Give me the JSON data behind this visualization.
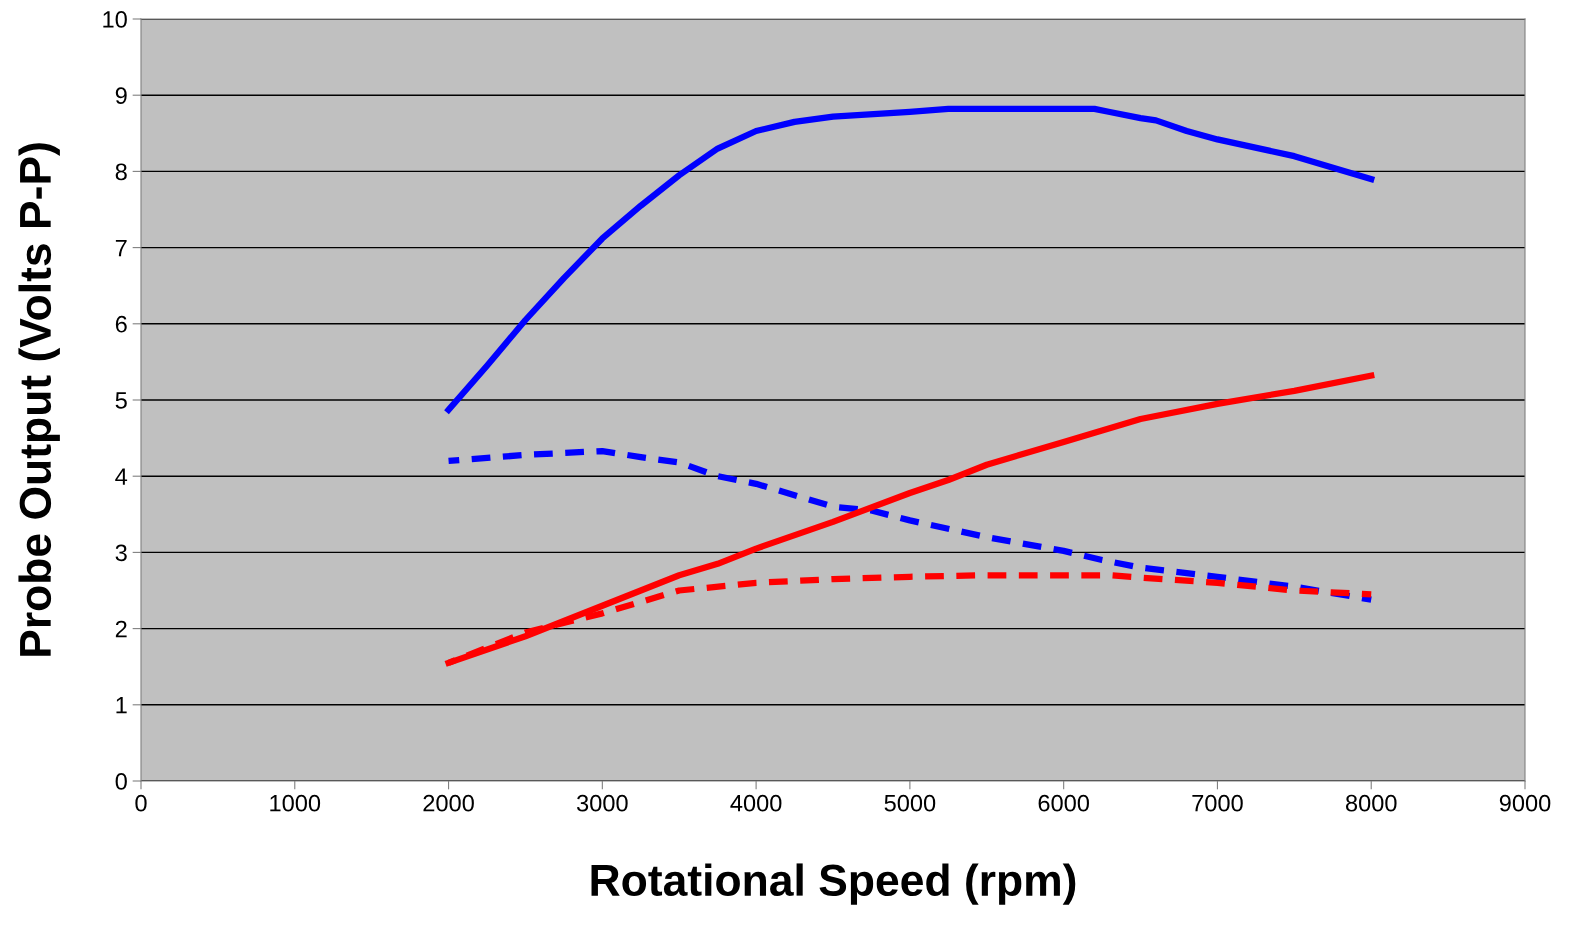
{
  "chart_data": {
    "type": "line",
    "xlabel": "Rotational Speed (rpm)",
    "ylabel": "Probe Output (Volts P-P)",
    "xlim": [
      0,
      9000
    ],
    "xticks": [
      0,
      1000,
      2000,
      3000,
      4000,
      5000,
      6000,
      7000,
      8000,
      9000
    ],
    "ylim": [
      0,
      10
    ],
    "yticks": [
      0,
      1,
      2,
      3,
      4,
      5,
      6,
      7,
      8,
      9,
      10
    ],
    "grid": "y",
    "marker": "none",
    "series": [
      {
        "color": "#0000ff",
        "line_style": "solid",
        "x": [
          2000,
          2250,
          2500,
          2750,
          3000,
          3250,
          3500,
          3750,
          4000,
          4250,
          4500,
          5000,
          5250,
          6000,
          6200,
          6300,
          6500,
          6600,
          6800,
          7000,
          7500,
          8000
        ],
        "values": [
          4.87,
          5.45,
          6.05,
          6.6,
          7.12,
          7.55,
          7.95,
          8.3,
          8.53,
          8.65,
          8.72,
          8.78,
          8.82,
          8.82,
          8.82,
          8.78,
          8.7,
          8.67,
          8.53,
          8.42,
          8.2,
          7.9
        ]
      },
      {
        "color": "#0000ff",
        "line_style": "dashed",
        "x": [
          2000,
          2500,
          3000,
          3250,
          3500,
          3750,
          4000,
          4250,
          4500,
          4750,
          5000,
          5500,
          6000,
          6250,
          6500,
          7000,
          7500,
          8000
        ],
        "values": [
          4.2,
          4.28,
          4.33,
          4.25,
          4.18,
          4.0,
          3.9,
          3.75,
          3.6,
          3.55,
          3.42,
          3.2,
          3.02,
          2.9,
          2.8,
          2.68,
          2.55,
          2.38
        ]
      },
      {
        "color": "#ff0000",
        "line_style": "solid",
        "x": [
          2000,
          2500,
          3000,
          3250,
          3500,
          3750,
          4000,
          4500,
          5000,
          5250,
          5500,
          6000,
          6250,
          6500,
          7000,
          7500,
          8000
        ],
        "values": [
          1.55,
          1.9,
          2.3,
          2.5,
          2.7,
          2.85,
          3.05,
          3.4,
          3.78,
          3.95,
          4.15,
          4.45,
          4.6,
          4.75,
          4.95,
          5.12,
          5.32
        ]
      },
      {
        "color": "#ff0000",
        "line_style": "dashed",
        "x": [
          2000,
          2500,
          3000,
          3250,
          3500,
          4000,
          4500,
          5000,
          5500,
          6000,
          6300,
          6500,
          7000,
          7500,
          8000
        ],
        "values": [
          1.55,
          1.95,
          2.2,
          2.35,
          2.5,
          2.6,
          2.65,
          2.68,
          2.7,
          2.7,
          2.7,
          2.67,
          2.6,
          2.5,
          2.45
        ]
      }
    ]
  }
}
